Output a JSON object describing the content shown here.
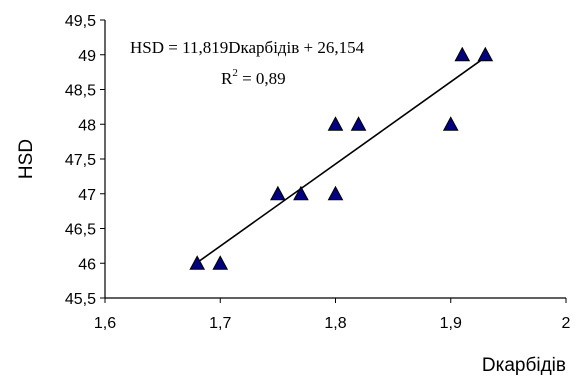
{
  "chart_data": {
    "type": "scatter",
    "title": "",
    "xlabel": "Dкарбідів",
    "ylabel": "HSD",
    "xlim": [
      1.6,
      2.0
    ],
    "ylim": [
      45.5,
      49.5
    ],
    "x_ticks": [
      1.6,
      1.7,
      1.8,
      1.9,
      2.0
    ],
    "x_tick_labels": [
      "1,6",
      "1,7",
      "1,8",
      "1,9",
      "2"
    ],
    "y_ticks": [
      45.5,
      46,
      46.5,
      47,
      47.5,
      48,
      48.5,
      49,
      49.5
    ],
    "y_tick_labels": [
      "45,5",
      "46",
      "46,5",
      "47",
      "47,5",
      "48",
      "48,5",
      "49",
      "49,5"
    ],
    "grid": false,
    "marker": "triangle",
    "marker_color": "#000080",
    "series": [
      {
        "x": [
          1.68,
          1.7,
          1.75,
          1.77,
          1.8,
          1.8,
          1.82,
          1.9,
          1.91,
          1.93
        ],
        "y": [
          46,
          46,
          47,
          47,
          47,
          48,
          48,
          48,
          49,
          49
        ]
      }
    ],
    "trendline": {
      "type": "linear",
      "slope": 11.819,
      "intercept": 26.154,
      "x_range": [
        1.68,
        1.93
      ],
      "color": "#000000"
    },
    "annotations": {
      "equation": "HSD = 11,819Dкарбідів + 26,154",
      "r2_prefix": "R",
      "r2_sup": "2",
      "r2_value": " = 0,89"
    }
  }
}
